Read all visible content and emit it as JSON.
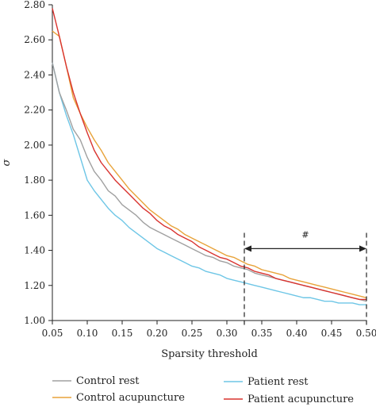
{
  "chart_data": {
    "type": "line",
    "xlabel": "Sparsity threshold",
    "ylabel": "σ",
    "xlim": [
      0.05,
      0.5
    ],
    "ylim": [
      1.0,
      2.8
    ],
    "xticks": [
      0.05,
      0.1,
      0.15,
      0.2,
      0.25,
      0.3,
      0.35,
      0.4,
      0.45,
      0.5
    ],
    "xtick_labels": [
      "0.05",
      "0.10",
      "0.15",
      "0.20",
      "0.25",
      "0.30",
      "0.35",
      "0.40",
      "0.45",
      "0.50"
    ],
    "yticks": [
      1.0,
      1.2,
      1.4,
      1.6,
      1.8,
      2.0,
      2.2,
      2.4,
      2.6,
      2.8
    ],
    "ytick_labels": [
      "1.00",
      "1.20",
      "1.40",
      "1.60",
      "1.80",
      "2.00",
      "2.20",
      "2.40",
      "2.60",
      "2.80"
    ],
    "x": [
      0.05,
      0.06,
      0.07,
      0.08,
      0.09,
      0.1,
      0.11,
      0.12,
      0.13,
      0.14,
      0.15,
      0.16,
      0.17,
      0.18,
      0.19,
      0.2,
      0.21,
      0.22,
      0.23,
      0.24,
      0.25,
      0.26,
      0.27,
      0.28,
      0.29,
      0.3,
      0.31,
      0.32,
      0.33,
      0.34,
      0.35,
      0.36,
      0.37,
      0.38,
      0.39,
      0.4,
      0.41,
      0.42,
      0.43,
      0.44,
      0.45,
      0.46,
      0.47,
      0.48,
      0.49,
      0.5
    ],
    "series": [
      {
        "name": "Control rest",
        "color": "#a0a0a0",
        "values": [
          2.47,
          2.3,
          2.2,
          2.09,
          2.03,
          1.93,
          1.85,
          1.8,
          1.74,
          1.71,
          1.66,
          1.63,
          1.6,
          1.56,
          1.53,
          1.51,
          1.49,
          1.47,
          1.45,
          1.43,
          1.41,
          1.39,
          1.37,
          1.36,
          1.34,
          1.33,
          1.31,
          1.3,
          1.29,
          1.27,
          1.26,
          1.25,
          1.24,
          1.23,
          1.22,
          1.21,
          1.2,
          1.19,
          1.18,
          1.17,
          1.16,
          1.15,
          1.14,
          1.13,
          1.12,
          1.11
        ]
      },
      {
        "name": "Control acupuncture",
        "color": "#e8a33a",
        "values": [
          2.65,
          2.62,
          2.45,
          2.27,
          2.18,
          2.1,
          2.03,
          1.97,
          1.9,
          1.85,
          1.8,
          1.75,
          1.71,
          1.67,
          1.63,
          1.6,
          1.57,
          1.54,
          1.52,
          1.49,
          1.47,
          1.45,
          1.43,
          1.41,
          1.39,
          1.37,
          1.36,
          1.34,
          1.32,
          1.31,
          1.29,
          1.28,
          1.27,
          1.26,
          1.24,
          1.23,
          1.22,
          1.21,
          1.2,
          1.19,
          1.18,
          1.17,
          1.16,
          1.15,
          1.14,
          1.13
        ]
      },
      {
        "name": "Patient rest",
        "color": "#6ec6e6",
        "values": [
          2.47,
          2.3,
          2.17,
          2.06,
          1.93,
          1.8,
          1.74,
          1.69,
          1.64,
          1.6,
          1.57,
          1.53,
          1.5,
          1.47,
          1.44,
          1.41,
          1.39,
          1.37,
          1.35,
          1.33,
          1.31,
          1.3,
          1.28,
          1.27,
          1.26,
          1.24,
          1.23,
          1.22,
          1.21,
          1.2,
          1.19,
          1.18,
          1.17,
          1.16,
          1.15,
          1.14,
          1.13,
          1.13,
          1.12,
          1.11,
          1.11,
          1.1,
          1.1,
          1.1,
          1.09,
          1.09
        ]
      },
      {
        "name": "Patient acupuncture",
        "color": "#d9332f",
        "values": [
          2.78,
          2.62,
          2.45,
          2.3,
          2.18,
          2.07,
          1.97,
          1.9,
          1.85,
          1.8,
          1.76,
          1.72,
          1.68,
          1.64,
          1.61,
          1.57,
          1.54,
          1.52,
          1.49,
          1.47,
          1.45,
          1.42,
          1.4,
          1.38,
          1.36,
          1.35,
          1.33,
          1.31,
          1.3,
          1.28,
          1.27,
          1.26,
          1.24,
          1.23,
          1.22,
          1.21,
          1.2,
          1.19,
          1.18,
          1.17,
          1.16,
          1.15,
          1.14,
          1.13,
          1.12,
          1.12
        ]
      }
    ],
    "annotation": {
      "label": "#",
      "x_start": 0.325,
      "x_end": 0.5,
      "y": 1.41
    },
    "legend_placement": "bottom",
    "grid": false
  }
}
